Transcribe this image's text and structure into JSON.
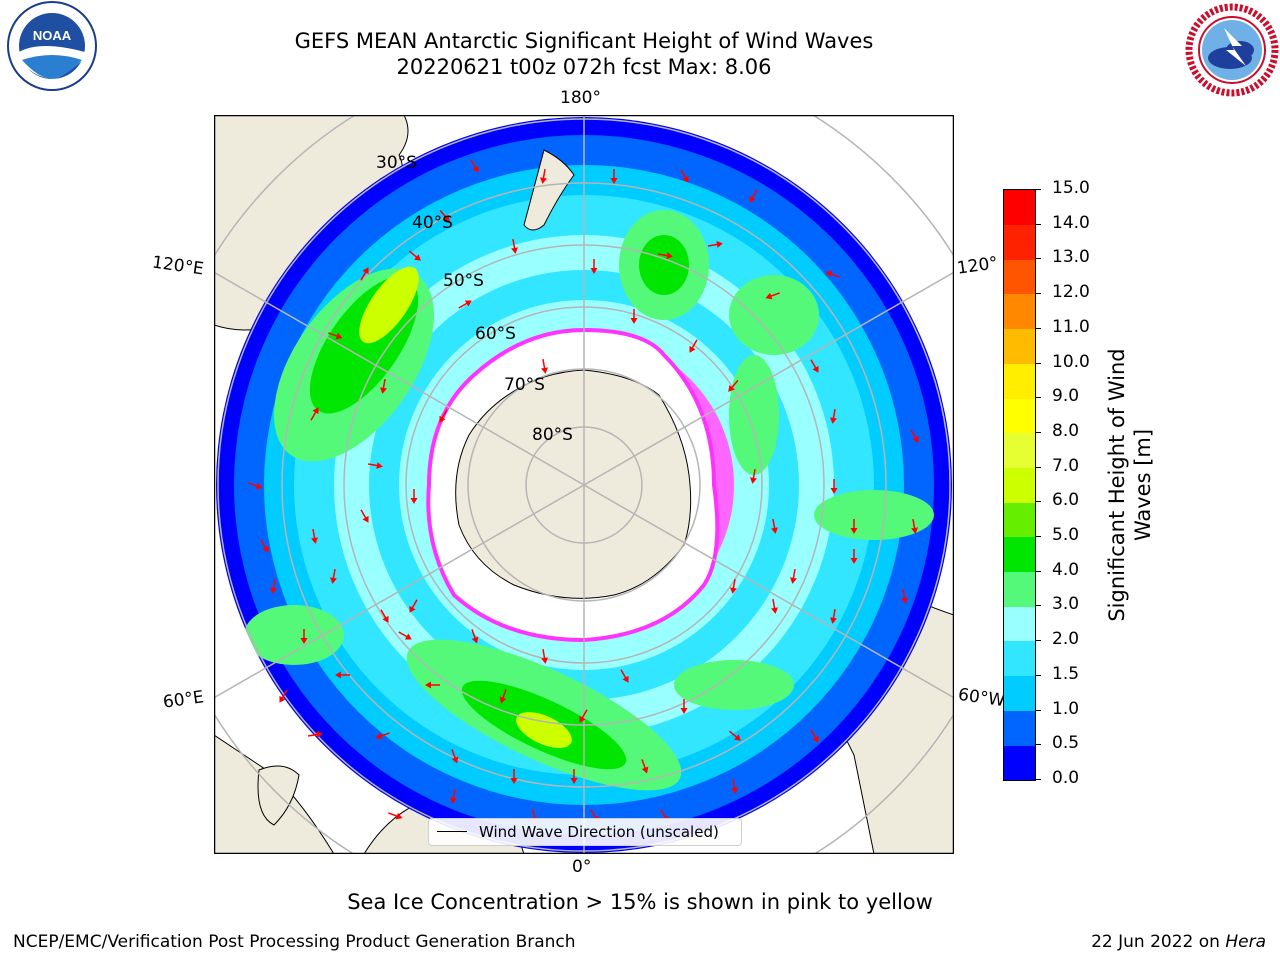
{
  "title": {
    "line1": "GEFS MEAN Antarctic Significant Height of Wind Waves",
    "line2": "20220621 t00z 072h fcst   Max: 8.06"
  },
  "map": {
    "projection": "South polar stereographic",
    "longitude_labels": {
      "top": "180°",
      "bottom": "0°",
      "left_upper": "120°E",
      "left_lower": "60°E",
      "right_upper": "120°",
      "right_lower": "60°W"
    },
    "latitude_labels": [
      "30°S",
      "40°S",
      "50°S",
      "60°S",
      "70°S",
      "80°S"
    ],
    "legend_label": "Wind Wave Direction (unscaled)",
    "arrow_color": "#ff0000",
    "land_color": "#efebdc",
    "ice_color": "#ffffff"
  },
  "colorbar": {
    "label_line1": "Significant Height of Wind",
    "label_line2": "Waves [m]",
    "ticks": [
      "15.0",
      "14.0",
      "13.0",
      "12.0",
      "11.0",
      "10.0",
      "9.0",
      "8.0",
      "7.0",
      "6.0",
      "5.0",
      "4.0",
      "3.0",
      "2.0",
      "1.5",
      "1.0",
      "0.5",
      "0.0"
    ],
    "bands": [
      {
        "from": 0.0,
        "to": 0.5,
        "color": "#0000ff"
      },
      {
        "from": 0.5,
        "to": 1.0,
        "color": "#0066ff"
      },
      {
        "from": 1.0,
        "to": 1.5,
        "color": "#00ccff"
      },
      {
        "from": 1.5,
        "to": 2.0,
        "color": "#33e6ff"
      },
      {
        "from": 2.0,
        "to": 3.0,
        "color": "#99ffff"
      },
      {
        "from": 3.0,
        "to": 4.0,
        "color": "#55f97a"
      },
      {
        "from": 4.0,
        "to": 5.0,
        "color": "#00e600"
      },
      {
        "from": 5.0,
        "to": 6.0,
        "color": "#66ee00"
      },
      {
        "from": 6.0,
        "to": 7.0,
        "color": "#ccff00"
      },
      {
        "from": 7.0,
        "to": 8.0,
        "color": "#e6ff33"
      },
      {
        "from": 8.0,
        "to": 9.0,
        "color": "#ffff00"
      },
      {
        "from": 9.0,
        "to": 10.0,
        "color": "#ffee00"
      },
      {
        "from": 10.0,
        "to": 11.0,
        "color": "#ffbb00"
      },
      {
        "from": 11.0,
        "to": 12.0,
        "color": "#ff8800"
      },
      {
        "from": 12.0,
        "to": 13.0,
        "color": "#ff5500"
      },
      {
        "from": 13.0,
        "to": 14.0,
        "color": "#ff2200"
      },
      {
        "from": 14.0,
        "to": 15.0,
        "color": "#ff0000"
      }
    ]
  },
  "note": "Sea Ice Concentration > 15% is shown in pink to yellow",
  "footer": {
    "left": "NCEP/EMC/Verification Post Processing Product Generation Branch",
    "right_date": "22 Jun 2022 on ",
    "right_host": "Hera"
  },
  "logos": {
    "noaa": "NOAA",
    "noaa_ring": "NATIONAL OCEANIC AND ATMOSPHERIC ADMINISTRATION · U.S. DEPARTMENT OF COMMERCE",
    "nws_ring": "NATIONAL WEATHER SERVICE"
  }
}
